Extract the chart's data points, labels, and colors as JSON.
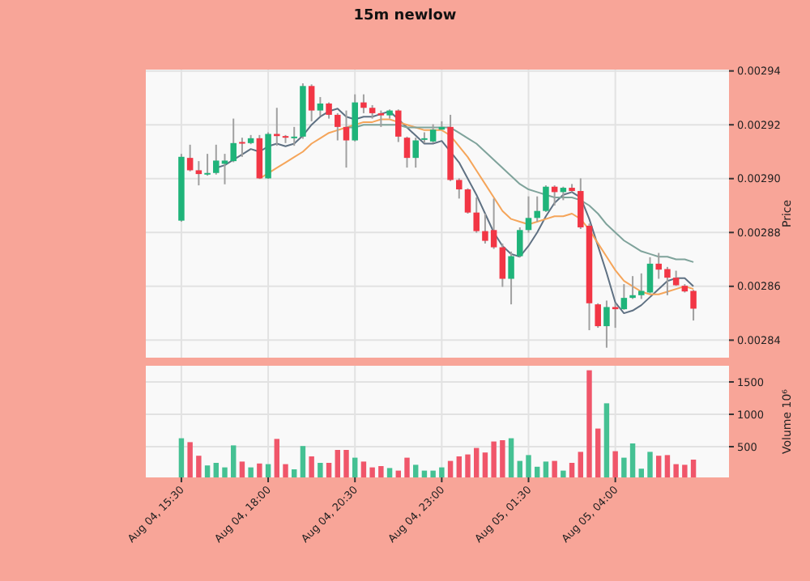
{
  "chart_data": [
    {
      "type": "candlestick",
      "title": "15m newlow",
      "ylabel": "Price",
      "grid": true,
      "tick_labels": "y",
      "categories": [
        null,
        null,
        null,
        null,
        null,
        null,
        null,
        null,
        null,
        null,
        null,
        null,
        null,
        null,
        null,
        null,
        null,
        null,
        null,
        null,
        null,
        null,
        null,
        null,
        null,
        null,
        null,
        null,
        null,
        null,
        null,
        null,
        null,
        null,
        null,
        null,
        null,
        null,
        null,
        null,
        null,
        null,
        null,
        null,
        null,
        null,
        null,
        null,
        null,
        null,
        null,
        null,
        null,
        null,
        null,
        null,
        null,
        null,
        null,
        null
      ],
      "ylim": [
        0.0028335,
        0.0029405
      ],
      "yticks": [
        0.00284,
        0.00286,
        0.00288,
        {
          "value": 0.0029,
          "label": "0.00290"
        },
        0.00292,
        0.00294
      ],
      "ohlc": [
        [
          0.0028844,
          0.0029092,
          0.002884,
          0.0029081
        ],
        [
          0.0029077,
          0.0029126,
          0.0029027,
          0.0029031
        ],
        [
          0.0029031,
          0.0029065,
          0.0028975,
          0.0029017
        ],
        [
          0.0029017,
          0.0029092,
          0.0029011,
          0.0029021
        ],
        [
          0.0029021,
          0.0029126,
          0.0029015,
          0.0029067
        ],
        [
          0.0029055,
          0.0029092,
          0.0028979,
          0.0029067
        ],
        [
          0.0029065,
          0.0029223,
          0.0029061,
          0.0029132
        ],
        [
          0.0029136,
          0.0029152,
          0.0029081,
          0.0029132
        ],
        [
          0.0029132,
          0.0029162,
          0.0029128,
          0.002915
        ],
        [
          0.002915,
          0.0029162,
          0.0028999,
          0.0029001
        ],
        [
          0.0029001,
          0.0029172,
          0.0028999,
          0.0029166
        ],
        [
          0.0029166,
          0.0029263,
          0.0029122,
          0.0029158
        ],
        [
          0.0029158,
          0.0029162,
          0.0029132,
          0.0029154
        ],
        [
          0.0029154,
          0.0029192,
          0.0029122,
          0.0029156
        ],
        [
          0.0029156,
          0.0029354,
          0.0029148,
          0.0029344
        ],
        [
          0.0029344,
          0.002935,
          0.0029213,
          0.0029253
        ],
        [
          0.0029253,
          0.0029303,
          0.0029233,
          0.0029279
        ],
        [
          0.0029279,
          0.0029283,
          0.0029223,
          0.0029237
        ],
        [
          0.0029237,
          0.0029243,
          0.0029142,
          0.0029192
        ],
        [
          0.0029192,
          0.0029253,
          0.0029041,
          0.0029142
        ],
        [
          0.0029142,
          0.0029313,
          0.0029138,
          0.0029283
        ],
        [
          0.0029283,
          0.0029313,
          0.0029243,
          0.0029263
        ],
        [
          0.0029263,
          0.0029273,
          0.0029223,
          0.0029243
        ],
        [
          0.0029243,
          0.0029253,
          0.0029192,
          0.0029235
        ],
        [
          0.0029235,
          0.0029257,
          0.0029223,
          0.0029253
        ],
        [
          0.0029253,
          0.0029257,
          0.0029136,
          0.0029156
        ],
        [
          0.0029152,
          0.0029156,
          0.0029041,
          0.0029077
        ],
        [
          0.0029077,
          0.0029152,
          0.0029041,
          0.0029142
        ],
        [
          0.0029146,
          0.0029172,
          0.0029132,
          0.002915
        ],
        [
          0.0029138,
          0.0029202,
          0.0029132,
          0.0029182
        ],
        [
          0.0029182,
          0.0029213,
          0.0029182,
          0.0029192
        ],
        [
          0.0029192,
          0.0029237,
          0.0028991,
          0.0028995
        ],
        [
          0.0028995,
          0.0029001,
          0.0028926,
          0.002896
        ],
        [
          0.002896,
          0.0028964,
          0.002887,
          0.0028874
        ],
        [
          0.0028874,
          0.002893,
          0.0028799,
          0.0028805
        ],
        [
          0.0028805,
          0.002887,
          0.0028759,
          0.0028769
        ],
        [
          0.0028809,
          0.0028926,
          0.0028739,
          0.0028745
        ],
        [
          0.0028745,
          0.0028759,
          0.0028598,
          0.0028628
        ],
        [
          0.0028628,
          0.0028729,
          0.0028533,
          0.0028712
        ],
        [
          0.0028712,
          0.0028819,
          0.0028708,
          0.0028809
        ],
        [
          0.0028809,
          0.0028934,
          0.0028799,
          0.0028854
        ],
        [
          0.0028854,
          0.0028934,
          0.002884,
          0.002888
        ],
        [
          0.002888,
          0.0028975,
          0.0028876,
          0.002897
        ],
        [
          0.002897,
          0.0028975,
          0.00289,
          0.002895
        ],
        [
          0.002895,
          0.002897,
          0.002892,
          0.0028966
        ],
        [
          0.0028966,
          0.002898,
          0.002895,
          0.0028954
        ],
        [
          0.0028954,
          0.0029001,
          0.0028813,
          0.0028819
        ],
        [
          0.0028825,
          0.0028833,
          0.0028437,
          0.0028537
        ],
        [
          0.0028533,
          0.0028537,
          0.0028446,
          0.0028452
        ],
        [
          0.0028452,
          0.0028547,
          0.0028372,
          0.0028523
        ],
        [
          0.0028523,
          0.0028537,
          0.0028446,
          0.0028515
        ],
        [
          0.0028515,
          0.0028608,
          0.0028513,
          0.0028557
        ],
        [
          0.0028557,
          0.0028638,
          0.0028553,
          0.0028567
        ],
        [
          0.0028567,
          0.0028648,
          0.0028553,
          0.0028583
        ],
        [
          0.0028577,
          0.0028708,
          0.0028573,
          0.0028684
        ],
        [
          0.0028684,
          0.0028724,
          0.0028628,
          0.0028662
        ],
        [
          0.0028664,
          0.0028672,
          0.0028567,
          0.0028632
        ],
        [
          0.0028632,
          0.0028658,
          0.0028602,
          0.0028604
        ],
        [
          0.0028602,
          0.0028608,
          0.0028577,
          0.0028581
        ],
        [
          0.0028583,
          0.0028587,
          0.0028473,
          0.0028517
        ]
      ],
      "colors": [
        "#1fb47a",
        "#f23645",
        "#f23645",
        "#1fb47a",
        "#1fb47a",
        "#1fb47a",
        "#1fb47a",
        "#f23645",
        "#1fb47a",
        "#f23645",
        "#1fb47a",
        "#f23645",
        "#f23645",
        "#1fb47a",
        "#1fb47a",
        "#f23645",
        "#1fb47a",
        "#f23645",
        "#f23645",
        "#f23645",
        "#1fb47a",
        "#f23645",
        "#f23645",
        "#f23645",
        "#1fb47a",
        "#f23645",
        "#f23645",
        "#1fb47a",
        "#1fb47a",
        "#1fb47a",
        "#1fb47a",
        "#f23645",
        "#f23645",
        "#f23645",
        "#f23645",
        "#f23645",
        "#f23645",
        "#f23645",
        "#1fb47a",
        "#1fb47a",
        "#1fb47a",
        "#1fb47a",
        "#1fb47a",
        "#f23645",
        "#1fb47a",
        "#f23645",
        "#f23645",
        "#f23645",
        "#f23645",
        "#1fb47a",
        "#f23645",
        "#1fb47a",
        "#1fb47a",
        "#1fb47a",
        "#1fb47a",
        "#f23645",
        "#f23645",
        "#f23645",
        "#f23645",
        "#f23645"
      ],
      "series": [
        {
          "type": "line",
          "color": "#5f7183",
          "values": [
            null,
            null,
            null,
            null,
            0.002904,
            0.002905,
            0.002907,
            0.002909,
            0.002911,
            0.00291,
            0.002912,
            0.002913,
            0.002912,
            0.002913,
            0.002916,
            0.00292,
            0.002923,
            0.002925,
            0.002926,
            0.002923,
            0.002922,
            0.002923,
            0.002923,
            0.002924,
            0.002925,
            0.002922,
            0.002919,
            0.002916,
            0.002913,
            0.002913,
            0.002914,
            0.00291,
            0.002906,
            0.0029,
            0.002894,
            0.002887,
            0.00288,
            0.002875,
            0.002872,
            0.002871,
            0.002875,
            0.00288,
            0.002886,
            0.002891,
            0.002894,
            0.002895,
            0.002893,
            0.002885,
            0.002875,
            0.002865,
            0.002854,
            0.00285,
            0.002851,
            0.002853,
            0.002856,
            0.002859,
            0.002862,
            0.002863,
            0.002863,
            0.00286
          ]
        },
        {
          "type": "line",
          "color": "#f5a55a",
          "values": [
            null,
            null,
            null,
            null,
            null,
            null,
            null,
            null,
            null,
            0.0029,
            0.002902,
            0.002904,
            0.002906,
            0.002908,
            0.00291,
            0.002913,
            0.002915,
            0.002917,
            0.002918,
            0.002919,
            0.00292,
            0.002921,
            0.002921,
            0.002922,
            0.002922,
            0.002921,
            0.00292,
            0.002919,
            0.002918,
            0.002918,
            0.002918,
            0.002916,
            0.002912,
            0.002908,
            0.002903,
            0.002898,
            0.002893,
            0.002888,
            0.002885,
            0.002884,
            0.002883,
            0.002884,
            0.002885,
            0.002886,
            0.002886,
            0.002887,
            0.002885,
            0.002881,
            0.002876,
            0.002871,
            0.002866,
            0.002862,
            0.00286,
            0.002858,
            0.002857,
            0.002857,
            0.002858,
            0.002859,
            0.00286,
            0.002859
          ]
        },
        {
          "type": "line",
          "color": "#7fa39b",
          "values": [
            null,
            null,
            null,
            null,
            null,
            null,
            null,
            null,
            null,
            null,
            null,
            null,
            null,
            null,
            null,
            null,
            null,
            null,
            null,
            0.002919,
            0.002919,
            0.00292,
            0.00292,
            0.00292,
            0.00292,
            0.00292,
            0.002919,
            0.002919,
            0.002919,
            0.002919,
            0.002919,
            0.002919,
            0.002917,
            0.002915,
            0.002913,
            0.00291,
            0.002907,
            0.002904,
            0.002901,
            0.002898,
            0.002896,
            0.002895,
            0.002894,
            0.002893,
            0.002893,
            0.002893,
            0.002892,
            0.00289,
            0.002887,
            0.002883,
            0.00288,
            0.002877,
            0.002875,
            0.002873,
            0.002872,
            0.002871,
            0.002871,
            0.00287,
            0.00287,
            0.002869
          ]
        }
      ]
    },
    {
      "type": "bar",
      "ylabel": "Volume  10⁶",
      "grid": true,
      "categories": [
        "Aug 04, 15:30",
        null,
        null,
        null,
        null,
        null,
        null,
        null,
        null,
        null,
        "Aug 04, 18:00",
        null,
        null,
        null,
        null,
        null,
        null,
        null,
        null,
        null,
        "Aug 04, 20:30",
        null,
        null,
        null,
        null,
        null,
        null,
        null,
        null,
        null,
        "Aug 04, 23:00",
        null,
        null,
        null,
        null,
        null,
        null,
        null,
        null,
        null,
        "Aug 05, 01:30",
        null,
        null,
        null,
        null,
        null,
        null,
        null,
        null,
        null,
        "Aug 05, 04:00",
        null,
        null,
        null,
        null,
        null,
        null,
        null,
        null,
        null
      ],
      "ylim": [
        25,
        1750
      ],
      "yticks": [
        500,
        1000,
        1500
      ],
      "values": [
        630,
        570,
        360,
        210,
        250,
        180,
        520,
        270,
        180,
        240,
        230,
        620,
        230,
        150,
        510,
        350,
        250,
        250,
        450,
        450,
        330,
        270,
        180,
        200,
        170,
        130,
        330,
        220,
        130,
        130,
        180,
        280,
        350,
        380,
        480,
        410,
        580,
        600,
        630,
        280,
        370,
        190,
        270,
        280,
        130,
        250,
        420,
        1680,
        780,
        1170,
        430,
        330,
        550,
        160,
        420,
        360,
        370,
        230,
        220,
        300
      ],
      "colors": [
        "#45c193",
        "#f0566a",
        "#f0566a",
        "#45c193",
        "#45c193",
        "#45c193",
        "#45c193",
        "#f0566a",
        "#45c193",
        "#f0566a",
        "#45c193",
        "#f0566a",
        "#f0566a",
        "#45c193",
        "#45c193",
        "#f0566a",
        "#45c193",
        "#f0566a",
        "#f0566a",
        "#f0566a",
        "#45c193",
        "#f0566a",
        "#f0566a",
        "#f0566a",
        "#45c193",
        "#f0566a",
        "#f0566a",
        "#45c193",
        "#45c193",
        "#45c193",
        "#45c193",
        "#f0566a",
        "#f0566a",
        "#f0566a",
        "#f0566a",
        "#f0566a",
        "#f0566a",
        "#f0566a",
        "#45c193",
        "#45c193",
        "#45c193",
        "#45c193",
        "#45c193",
        "#f0566a",
        "#45c193",
        "#f0566a",
        "#f0566a",
        "#f0566a",
        "#f0566a",
        "#45c193",
        "#f0566a",
        "#45c193",
        "#45c193",
        "#45c193",
        "#45c193",
        "#f0566a",
        "#f0566a",
        "#f0566a",
        "#f0566a",
        "#f0566a"
      ]
    }
  ]
}
